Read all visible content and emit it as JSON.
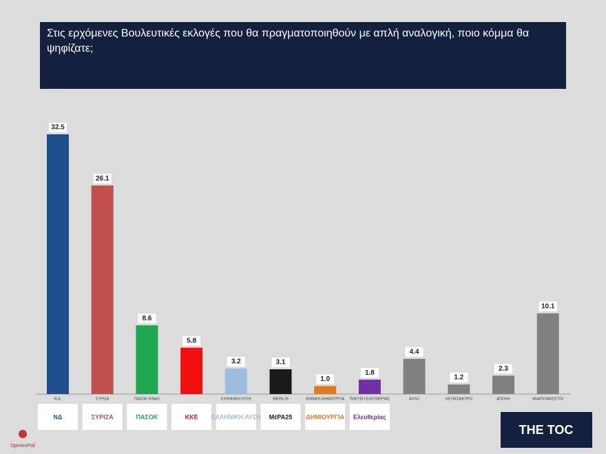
{
  "chart_data": {
    "type": "bar",
    "title": "Στις ερχόμενες Βουλευτικές εκλογές που θα πραγματοποιηθούν με απλή αναλογική, ποιο κόμμα θα ψηφίζατε;",
    "categories": [
      "Ν.Δ.",
      "ΣΥΡΙΖΑ",
      "ΠΑΣΟΚ ΚΙΝΑΛ",
      null,
      "ΕΛΛΗΝΙΚΗ ΛΥΣΗ",
      "ΜΕΡΑ 25",
      "ΕΘΝΙΚΗ ΔΗΜΙΟΥΡΓΙΑ",
      "ΠΛΕΥΣΗ ΕΛΕΥΘΕΡΙΑΣ",
      "ΑΛΛΟ",
      "ΛΕΥΚΟ/ΑΚΥΡΟ",
      "ΑΠΟΧΗ",
      "ΑΝΑΠΟΦΑΣΙΣΤΟΙ"
    ],
    "values": [
      32.5,
      26.1,
      8.6,
      5.8,
      3.2,
      3.1,
      1.0,
      1.8,
      4.4,
      1.2,
      2.3,
      10.1
    ],
    "value_labels": [
      "32.5",
      "26.1",
      "8.6",
      "5.8",
      "3.2",
      "3.1",
      "1.0",
      "1.8",
      "4.4",
      "1.2",
      "2.3",
      "10.1"
    ],
    "colors": [
      "#1f4e8c",
      "#c0504d",
      "#1fa84f",
      "#f01010",
      "#9dbde0",
      "#1a1a1a",
      "#e07a1f",
      "#7030a0",
      "#808080",
      "#808080",
      "#808080",
      "#808080"
    ]
  },
  "logos": [
    "ΝΔ",
    "ΣΥΡΙΖΑ",
    "ΠΑΣΟΚ",
    "ΚΚΕ",
    "ΕΛΛΗΝΙΚΗ ΛΥΣΗ",
    "ΜέΡΑ25",
    "ΔΗΜΙΟΥΡΓΙΑ",
    "Ελευθερίας"
  ],
  "brand": "THE TOC",
  "pollster": "OpinionPoll"
}
